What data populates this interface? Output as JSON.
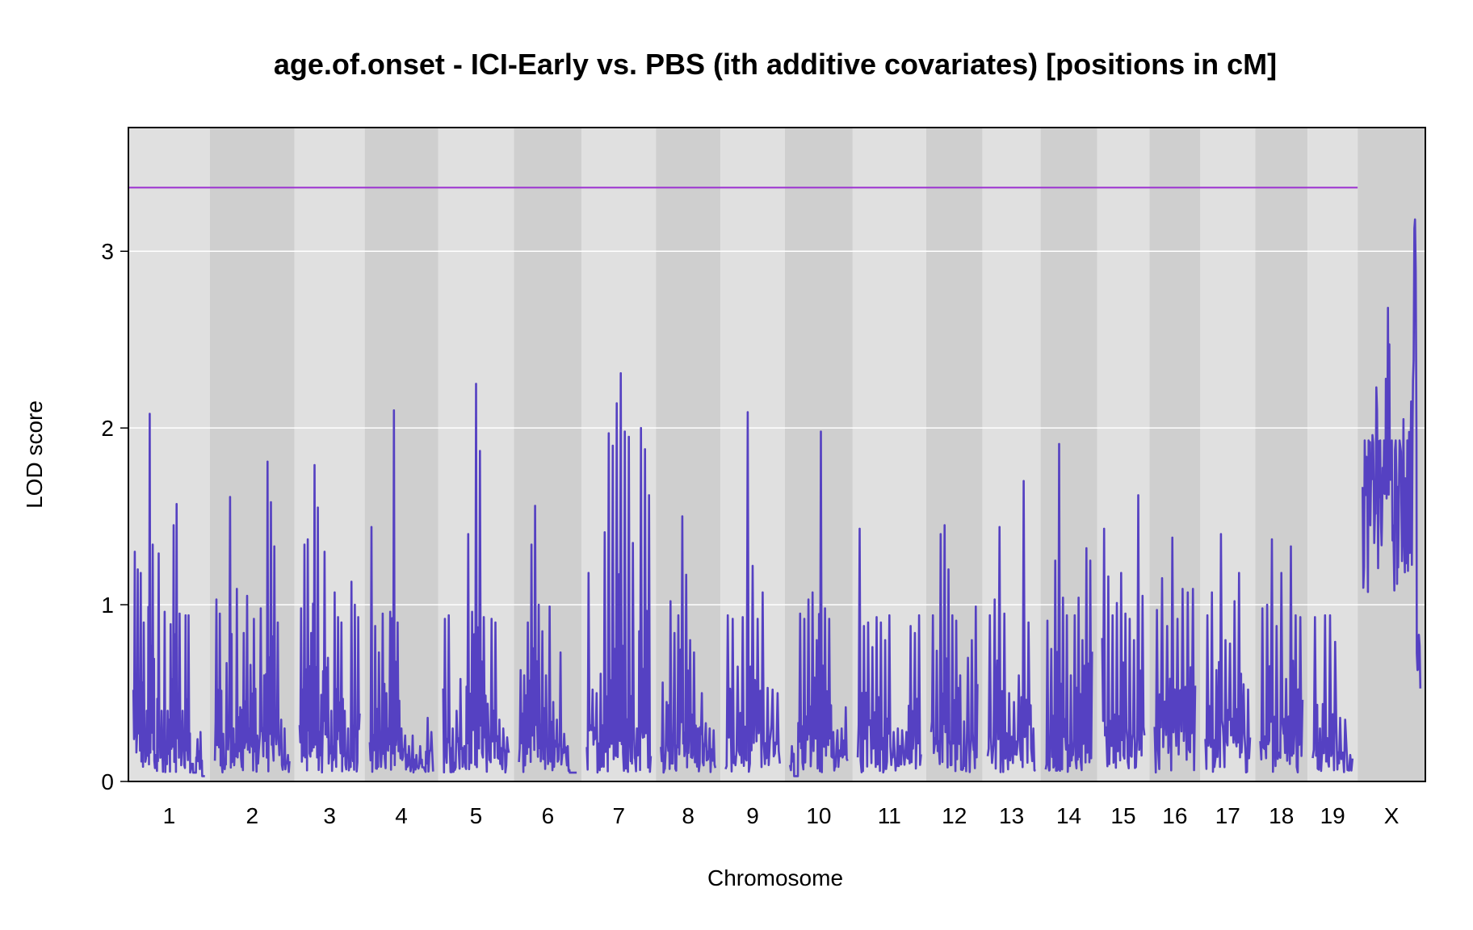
{
  "chart_data": {
    "type": "line",
    "title": "age.of.onset - ICI-Early vs. PBS (ith additive covariates) [positions in cM]",
    "xlabel": "Chromosome",
    "ylabel": "LOD score",
    "ylim": [
      0,
      3.7
    ],
    "yticks": [
      0,
      1,
      2,
      3
    ],
    "grid": true,
    "threshold": {
      "value": 3.36,
      "color": "#9B30D0"
    },
    "colors": {
      "line": "#5541C2",
      "panel_light": "#E0E0E0",
      "panel_dark": "#CFCFCF",
      "grid": "#FFFFFF"
    },
    "chromosomes": [
      {
        "label": "1",
        "peaks": [
          1.3,
          1.2,
          1.18,
          0.9,
          0.4,
          2.08,
          1.34,
          0.15,
          1.29,
          0.4,
          0.96,
          0.4,
          0.89,
          1.45,
          1.57,
          0.95,
          0.4,
          0.94,
          0.94,
          0.1,
          0.05,
          0.24,
          0.28,
          0.03
        ]
      },
      {
        "label": "2",
        "peaks": [
          1.03,
          0.95,
          0.27,
          0.67,
          1.61,
          0.3,
          1.09,
          0.42,
          0.84,
          1.05,
          0.66,
          0.92,
          0.26,
          0.98,
          0.6,
          1.81,
          1.58,
          1.33,
          0.9,
          0.35,
          0.3,
          0.15
        ]
      },
      {
        "label": "3",
        "peaks": [
          0.98,
          1.34,
          1.37,
          0.84,
          1.79,
          1.55,
          0.49,
          1.3,
          0.7,
          0.4,
          1.07,
          0.93,
          0.9,
          0.4,
          0.3,
          1.13,
          1.0,
          0.93
        ]
      },
      {
        "label": "4",
        "peaks": [
          1.44,
          0.88,
          0.73,
          0.95,
          0.5,
          0.96,
          2.1,
          0.9,
          0.3,
          0.26,
          0.2,
          0.26,
          0.15,
          0.2,
          0.08,
          0.36,
          0.28
        ]
      },
      {
        "label": "5",
        "peaks": [
          0.92,
          0.94,
          0.3,
          0.4,
          0.58,
          0.2,
          1.4,
          0.96,
          2.25,
          1.87,
          0.93,
          0.44,
          0.92,
          0.9,
          0.35,
          0.3,
          0.25
        ]
      },
      {
        "label": "6",
        "peaks": [
          0.63,
          0.6,
          0.9,
          1.34,
          1.56,
          1.0,
          0.85,
          0.6,
          0.99,
          0.45,
          0.35,
          0.73,
          0.27,
          0.2,
          0.05,
          0.05
        ]
      },
      {
        "label": "7",
        "peaks": [
          1.18,
          0.52,
          0.5,
          0.61,
          1.41,
          1.97,
          1.9,
          2.14,
          2.31,
          1.98,
          1.95,
          1.35,
          0.3,
          2.0,
          1.88,
          1.62
        ]
      },
      {
        "label": "8",
        "peaks": [
          0.56,
          0.45,
          1.02,
          0.84,
          0.94,
          1.5,
          1.17,
          0.8,
          0.73,
          0.3,
          0.5,
          0.33,
          0.3,
          0.29
        ]
      },
      {
        "label": "9",
        "peaks": [
          0.94,
          0.92,
          0.65,
          0.93,
          2.09,
          1.22,
          0.92,
          1.07,
          0.53,
          0.52,
          0.5
        ]
      },
      {
        "label": "10",
        "peaks": [
          0.2,
          0.03,
          0.95,
          0.92,
          1.03,
          1.07,
          0.8,
          1.98,
          0.98,
          0.92,
          0.28,
          0.29,
          0.3,
          0.42
        ]
      },
      {
        "label": "11",
        "peaks": [
          1.43,
          0.88,
          0.9,
          0.76,
          0.93,
          0.9,
          0.8,
          0.94,
          0.28,
          0.3,
          0.29,
          0.28,
          0.88,
          0.84,
          0.94
        ]
      },
      {
        "label": "12",
        "peaks": [
          0.94,
          0.74,
          1.4,
          1.45,
          1.2,
          0.94,
          0.91,
          0.6,
          0.34,
          0.7,
          0.8,
          0.99
        ]
      },
      {
        "label": "13",
        "peaks": [
          0.94,
          1.03,
          1.44,
          0.95,
          0.5,
          0.45,
          0.6,
          1.7,
          0.9,
          0.3
        ]
      },
      {
        "label": "14",
        "peaks": [
          0.91,
          0.75,
          1.25,
          1.91,
          1.04,
          0.94,
          0.6,
          0.94,
          1.04,
          0.8,
          1.32,
          1.25
        ]
      },
      {
        "label": "15",
        "peaks": [
          1.43,
          1.16,
          0.94,
          1.01,
          1.18,
          0.95,
          0.92,
          0.8,
          1.62,
          1.05
        ]
      },
      {
        "label": "16",
        "peaks": [
          0.97,
          1.15,
          0.88,
          1.38,
          0.92,
          1.09,
          1.07,
          1.09
        ]
      },
      {
        "label": "17",
        "peaks": [
          0.94,
          1.07,
          0.63,
          1.4,
          0.8,
          0.78,
          1.02,
          1.18,
          0.55,
          0.52
        ]
      },
      {
        "label": "18",
        "peaks": [
          0.98,
          1.0,
          1.37,
          0.88,
          1.18,
          0.58,
          1.33,
          0.94,
          0.93
        ]
      },
      {
        "label": "19",
        "peaks": [
          0.93,
          0.3,
          0.94,
          0.94,
          0.79,
          0.36,
          0.35,
          0.15
        ]
      },
      {
        "label": "X",
        "peaks": [
          1.93,
          1.93,
          1.96,
          2.23,
          1.93,
          1.93,
          2.68,
          1.93,
          1.93,
          1.93,
          2.05,
          1.93,
          2.15,
          3.18,
          0.83
        ]
      }
    ]
  }
}
